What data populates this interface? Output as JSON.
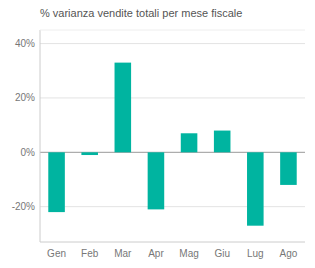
{
  "chart_data": {
    "type": "bar",
    "title": "% varianza vendite totali per mese fiscale",
    "categories": [
      "Gen",
      "Feb",
      "Mar",
      "Apr",
      "Mag",
      "Giu",
      "Lug",
      "Ago"
    ],
    "values": [
      -22,
      -1,
      33,
      -21,
      7,
      8,
      -27,
      -12
    ],
    "color": "#00b4a0",
    "ylim": [
      -33,
      45
    ],
    "yticks": [
      {
        "value": -20,
        "label": "-20%"
      },
      {
        "value": 0,
        "label": "0%"
      },
      {
        "value": 20,
        "label": "20%"
      },
      {
        "value": 40,
        "label": "40%"
      }
    ],
    "grid": true
  }
}
